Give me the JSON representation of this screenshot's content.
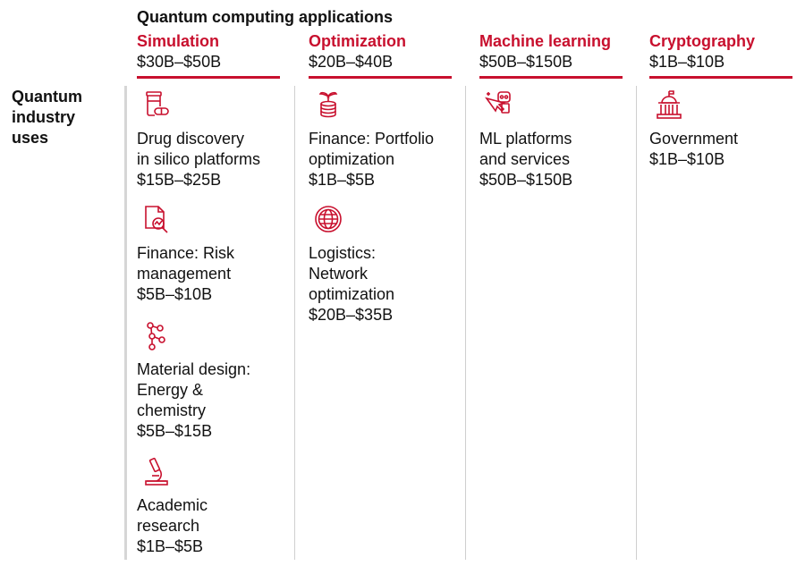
{
  "title": "Quantum computing applications",
  "side_label": "Quantum\nindustry\nuses",
  "colors": {
    "accent": "#c8102e",
    "text": "#111111",
    "rule": "#cfcfcf"
  },
  "columns": [
    {
      "name": "Simulation",
      "range": "$30B–$50B",
      "items": [
        {
          "icon": "pill-bottle-icon",
          "label": "Drug discovery\nin silico platforms",
          "value": "$15B–$25B"
        },
        {
          "icon": "document-magnifier-icon",
          "label": "Finance: Risk\nmanagement",
          "value": "$5B–$10B"
        },
        {
          "icon": "molecule-icon",
          "label": "Material design:\nEnergy &\nchemistry",
          "value": "$5B–$15B"
        },
        {
          "icon": "microscope-icon",
          "label": "Academic\nresearch",
          "value": "$1B–$5B"
        }
      ]
    },
    {
      "name": "Optimization",
      "range": "$20B–$40B",
      "items": [
        {
          "icon": "coins-plant-icon",
          "label": "Finance: Portfolio\noptimization",
          "value": "$1B–$5B"
        },
        {
          "icon": "globe-icon",
          "label": "Logistics:\nNetwork\noptimization",
          "value": "$20B–$35B"
        }
      ]
    },
    {
      "name": "Machine learning",
      "range": "$50B–$150B",
      "items": [
        {
          "icon": "cursor-robot-icon",
          "label": "ML platforms\nand services",
          "value": "$50B–$150B"
        }
      ]
    },
    {
      "name": "Cryptography",
      "range": "$1B–$10B",
      "items": [
        {
          "icon": "capitol-building-icon",
          "label": "Government",
          "value": "$1B–$10B"
        }
      ]
    }
  ]
}
